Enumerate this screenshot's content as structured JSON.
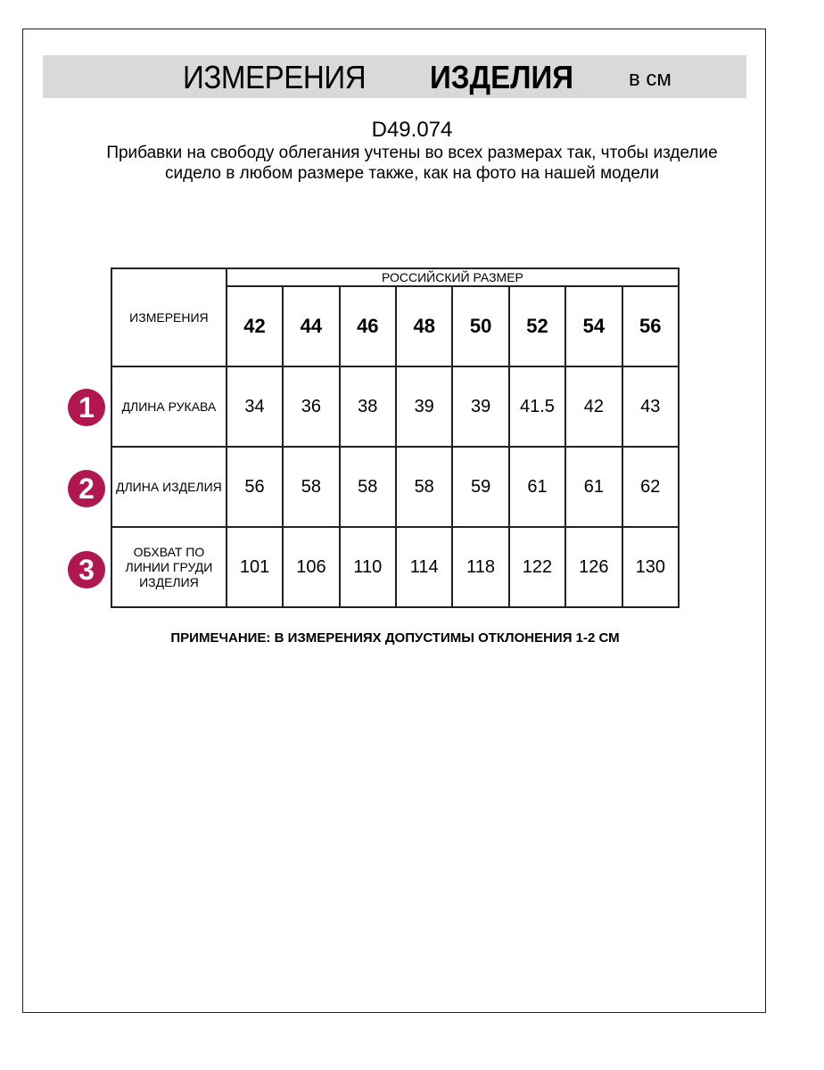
{
  "header": {
    "title_regular": "ИЗМЕРЕНИЯ",
    "title_bold": "ИЗДЕЛИЯ",
    "unit": "в см"
  },
  "product_code": "D49.074",
  "description": "Прибавки на свободу облегания учтены во всех размерах так, чтобы изделие сидело в любом размере также, как на фото на нашей модели",
  "table": {
    "measurements_header": "ИЗМЕРЕНИЯ",
    "size_system_header": "РОССИЙСКИЙ РАЗМЕР",
    "sizes": [
      "42",
      "44",
      "46",
      "48",
      "50",
      "52",
      "54",
      "56"
    ],
    "rows": [
      {
        "badge": "1",
        "label": "ДЛИНА РУКАВА",
        "values": [
          "34",
          "36",
          "38",
          "39",
          "39",
          "41.5",
          "42",
          "43"
        ]
      },
      {
        "badge": "2",
        "label": "ДЛИНА ИЗДЕЛИЯ",
        "values": [
          "56",
          "58",
          "58",
          "58",
          "59",
          "61",
          "61",
          "62"
        ]
      },
      {
        "badge": "3",
        "label": "ОБХВАТ ПО ЛИНИИ ГРУДИ ИЗДЕЛИЯ",
        "values": [
          "101",
          "106",
          "110",
          "114",
          "118",
          "122",
          "126",
          "130"
        ]
      }
    ]
  },
  "note": "ПРИМЕЧАНИЕ: В ИЗМЕРЕНИЯХ ДОПУСТИМЫ ОТКЛОНЕНИЯ 1-2 СМ",
  "colors": {
    "badge": "#b0164f",
    "banner": "#d9d9d9"
  }
}
